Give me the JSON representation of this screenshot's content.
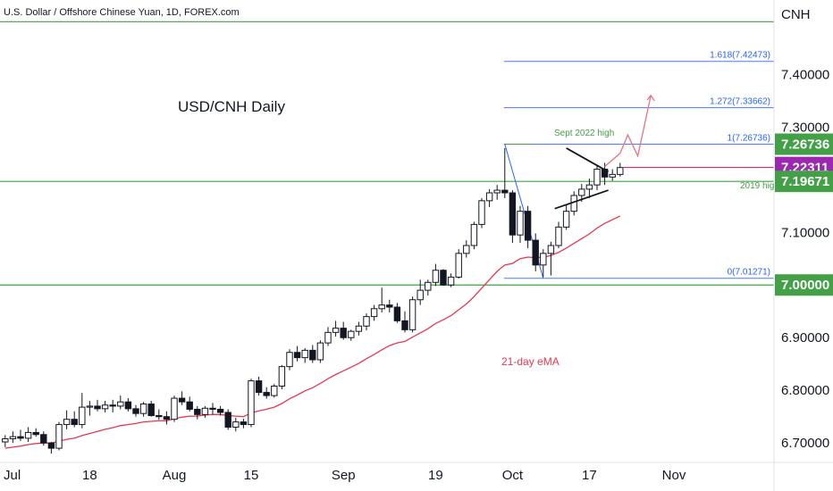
{
  "chart_data": {
    "type": "candlestick",
    "header": "U.S. Dollar / Offshore Chinese Yuan, 1D, FOREX.com",
    "currency": "CNH",
    "title": "USD/CNH Daily",
    "ylim": [
      6.68,
      7.52
    ],
    "y_ticks": [
      {
        "value": 6.7,
        "label": "6.70000"
      },
      {
        "value": 6.8,
        "label": "6.80000"
      },
      {
        "value": 6.9,
        "label": "6.90000"
      },
      {
        "value": 7.0,
        "label": "7.00000"
      },
      {
        "value": 7.1,
        "label": "7.10000"
      },
      {
        "value": 7.3,
        "label": "7.30000"
      },
      {
        "value": 7.4,
        "label": "7.40000"
      }
    ],
    "x_ticks": [
      {
        "index": 0,
        "label": "Jul"
      },
      {
        "index": 11,
        "label": "18"
      },
      {
        "index": 22,
        "label": "Aug"
      },
      {
        "index": 32,
        "label": "15"
      },
      {
        "index": 44,
        "label": "Sep"
      },
      {
        "index": 56,
        "label": "19"
      },
      {
        "index": 66,
        "label": "Oct"
      },
      {
        "index": 76,
        "label": "17"
      },
      {
        "index": 87,
        "label": "Nov"
      }
    ],
    "candles": [
      [
        6.702,
        6.715,
        6.692,
        6.708
      ],
      [
        6.708,
        6.722,
        6.7,
        6.712
      ],
      [
        6.712,
        6.725,
        6.704,
        6.709
      ],
      [
        6.709,
        6.73,
        6.702,
        6.72
      ],
      [
        6.72,
        6.728,
        6.712,
        6.716
      ],
      [
        6.716,
        6.722,
        6.695,
        6.7
      ],
      [
        6.7,
        6.702,
        6.68,
        6.69
      ],
      [
        6.69,
        6.74,
        6.686,
        6.735
      ],
      [
        6.735,
        6.762,
        6.726,
        6.745
      ],
      [
        6.745,
        6.76,
        6.73,
        6.735
      ],
      [
        6.735,
        6.795,
        6.728,
        6.768
      ],
      [
        6.768,
        6.78,
        6.752,
        6.77
      ],
      [
        6.77,
        6.782,
        6.76,
        6.765
      ],
      [
        6.765,
        6.78,
        6.758,
        6.772
      ],
      [
        6.772,
        6.782,
        6.758,
        6.77
      ],
      [
        6.77,
        6.79,
        6.764,
        6.778
      ],
      [
        6.778,
        6.785,
        6.76,
        6.765
      ],
      [
        6.765,
        6.772,
        6.75,
        6.756
      ],
      [
        6.756,
        6.778,
        6.75,
        6.774
      ],
      [
        6.774,
        6.78,
        6.75,
        6.752
      ],
      [
        6.752,
        6.764,
        6.744,
        6.75
      ],
      [
        6.75,
        6.76,
        6.735,
        6.745
      ],
      [
        6.745,
        6.79,
        6.74,
        6.785
      ],
      [
        6.785,
        6.798,
        6.772,
        6.778
      ],
      [
        6.778,
        6.788,
        6.76,
        6.764
      ],
      [
        6.764,
        6.77,
        6.745,
        6.754
      ],
      [
        6.754,
        6.77,
        6.748,
        6.766
      ],
      [
        6.766,
        6.776,
        6.754,
        6.764
      ],
      [
        6.764,
        6.77,
        6.752,
        6.758
      ],
      [
        6.758,
        6.764,
        6.725,
        6.73
      ],
      [
        6.73,
        6.748,
        6.722,
        6.74
      ],
      [
        6.74,
        6.746,
        6.728,
        6.735
      ],
      [
        6.735,
        6.822,
        6.73,
        6.818
      ],
      [
        6.818,
        6.826,
        6.79,
        6.796
      ],
      [
        6.796,
        6.806,
        6.784,
        6.79
      ],
      [
        6.79,
        6.812,
        6.786,
        6.808
      ],
      [
        6.808,
        6.848,
        6.802,
        6.845
      ],
      [
        6.845,
        6.878,
        6.838,
        6.872
      ],
      [
        6.872,
        6.884,
        6.855,
        6.862
      ],
      [
        6.862,
        6.88,
        6.852,
        6.876
      ],
      [
        6.876,
        6.886,
        6.852,
        6.858
      ],
      [
        6.858,
        6.895,
        6.852,
        6.89
      ],
      [
        6.89,
        6.92,
        6.884,
        6.91
      ],
      [
        6.91,
        6.932,
        6.902,
        6.918
      ],
      [
        6.918,
        6.93,
        6.896,
        6.9
      ],
      [
        6.9,
        6.915,
        6.894,
        6.912
      ],
      [
        6.912,
        6.93,
        6.904,
        6.922
      ],
      [
        6.922,
        6.946,
        6.914,
        6.94
      ],
      [
        6.94,
        6.962,
        6.932,
        6.955
      ],
      [
        6.955,
        6.995,
        6.948,
        6.962
      ],
      [
        6.962,
        6.972,
        6.948,
        6.958
      ],
      [
        6.958,
        6.966,
        6.928,
        6.932
      ],
      [
        6.932,
        6.95,
        6.91,
        6.915
      ],
      [
        6.915,
        6.978,
        6.91,
        6.972
      ],
      [
        6.972,
        7.01,
        6.962,
        6.99
      ],
      [
        6.99,
        7.01,
        6.98,
        7.005
      ],
      [
        7.005,
        7.04,
        6.998,
        7.028
      ],
      [
        7.028,
        7.03,
        6.998,
        7.0
      ],
      [
        7.0,
        7.022,
        6.996,
        7.015
      ],
      [
        7.015,
        7.068,
        7.012,
        7.06
      ],
      [
        7.06,
        7.085,
        7.052,
        7.075
      ],
      [
        7.075,
        7.12,
        7.068,
        7.115
      ],
      [
        7.115,
        7.165,
        7.108,
        7.16
      ],
      [
        7.16,
        7.182,
        7.148,
        7.175
      ],
      [
        7.175,
        7.19,
        7.162,
        7.18
      ],
      [
        7.18,
        7.26,
        7.165,
        7.175
      ],
      [
        7.175,
        7.18,
        7.08,
        7.095
      ],
      [
        7.095,
        7.15,
        7.08,
        7.14
      ],
      [
        7.14,
        7.15,
        7.07,
        7.085
      ],
      [
        7.085,
        7.098,
        7.026,
        7.038
      ],
      [
        7.038,
        7.068,
        7.015,
        7.06
      ],
      [
        7.06,
        7.082,
        7.018,
        7.075
      ],
      [
        7.075,
        7.12,
        7.07,
        7.11
      ],
      [
        7.11,
        7.152,
        7.105,
        7.14
      ],
      [
        7.14,
        7.178,
        7.132,
        7.17
      ],
      [
        7.17,
        7.192,
        7.158,
        7.182
      ],
      [
        7.182,
        7.202,
        7.165,
        7.19
      ],
      [
        7.19,
        7.228,
        7.18,
        7.22
      ],
      [
        7.22,
        7.232,
        7.19,
        7.205
      ],
      [
        7.205,
        7.22,
        7.198,
        7.21
      ],
      [
        7.21,
        7.232,
        7.206,
        7.223
      ]
    ],
    "ema21": [
      6.69,
      6.692,
      6.694,
      6.697,
      6.699,
      6.7,
      6.7,
      6.703,
      6.707,
      6.709,
      6.714,
      6.718,
      6.722,
      6.726,
      6.729,
      6.733,
      6.735,
      6.737,
      6.74,
      6.741,
      6.742,
      6.742,
      6.746,
      6.749,
      6.751,
      6.751,
      6.753,
      6.754,
      6.754,
      6.752,
      6.751,
      6.75,
      6.757,
      6.761,
      6.764,
      6.768,
      6.775,
      6.784,
      6.791,
      6.799,
      6.805,
      6.813,
      6.822,
      6.83,
      6.837,
      6.844,
      6.851,
      6.86,
      6.868,
      6.877,
      6.885,
      6.89,
      6.893,
      6.901,
      6.909,
      6.917,
      6.927,
      6.934,
      6.942,
      6.953,
      6.964,
      6.978,
      6.994,
      7.01,
      7.026,
      7.038,
      7.041,
      7.05,
      7.053,
      7.052,
      7.053,
      7.056,
      7.062,
      7.07,
      7.079,
      7.088,
      7.097,
      7.108,
      7.117,
      7.124,
      7.131
    ],
    "horizontal_levels": [
      {
        "value": 7.5,
        "color": "#43a047"
      },
      {
        "value": 7.19671,
        "label": "2019 high",
        "color": "#43a047"
      },
      {
        "value": 7.0,
        "color": "#43a047"
      }
    ],
    "fibonacci": {
      "swing_low": {
        "index": 70,
        "value": 7.01271
      },
      "swing_high": {
        "index": 65,
        "value": 7.26736
      },
      "levels": [
        {
          "ratio": 0,
          "label": "0(7.01271)",
          "value": 7.01271
        },
        {
          "ratio": 1,
          "label": "1(7.26736)",
          "value": 7.26736
        },
        {
          "ratio": 1.272,
          "label": "1.272(7.33662)",
          "value": 7.33662
        },
        {
          "ratio": 1.618,
          "label": "1.618(7.42473)",
          "value": 7.42473
        }
      ],
      "extra_label": "Sept 2022 high"
    },
    "price_tags": [
      {
        "value": 7.26736,
        "label": "7.26736",
        "color": "#43a047"
      },
      {
        "value": 7.22311,
        "label": "7.22311",
        "color": "#9c27b0"
      },
      {
        "value": 7.19671,
        "label": "7.19671",
        "color": "#43a047"
      },
      {
        "value": 7.0,
        "label": "7.00000",
        "color": "#43a047"
      }
    ],
    "current_price": {
      "value": 7.22311,
      "color": "#c2185b"
    },
    "triangle": {
      "upper": [
        {
          "index": 73,
          "value": 7.26
        },
        {
          "index": 78,
          "value": 7.215
        }
      ],
      "lower": [
        {
          "index": 71.5,
          "value": 7.145
        },
        {
          "index": 78,
          "value": 7.18
        }
      ]
    },
    "projection": [
      {
        "index": 78,
        "value": 7.225
      },
      {
        "index": 80,
        "value": 7.25
      },
      {
        "index": 81,
        "value": 7.285
      },
      {
        "index": 82.3,
        "value": 7.245
      },
      {
        "index": 84,
        "value": 7.36
      }
    ],
    "ema_label": "21-day eMA"
  }
}
